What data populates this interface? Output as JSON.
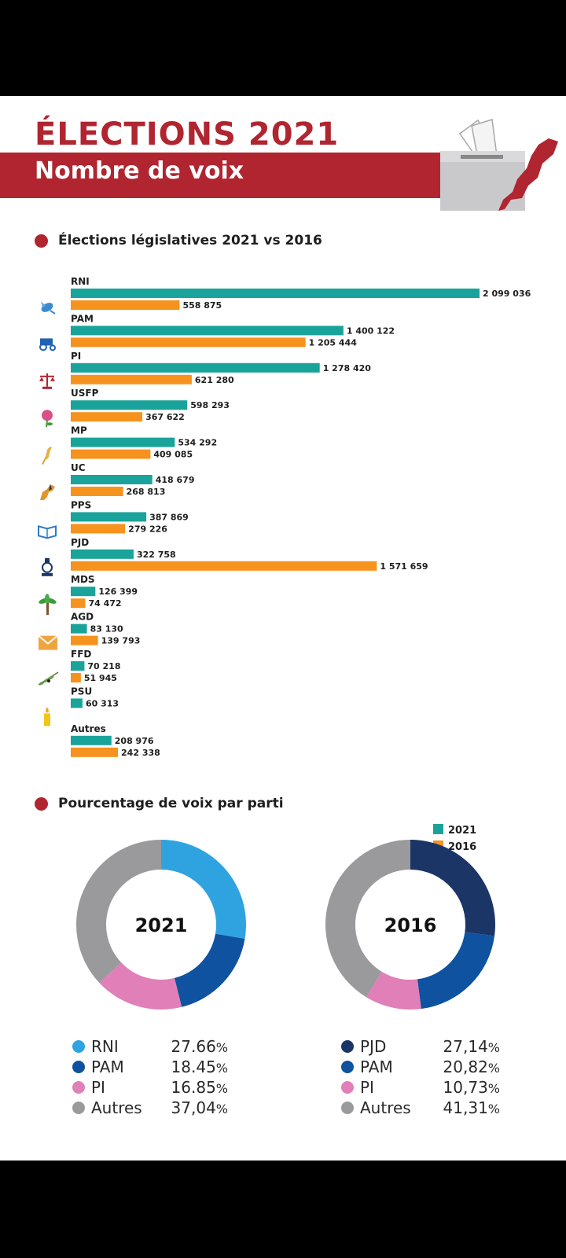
{
  "header": {
    "title": "ÉLECTIONS 2021",
    "subtitle": "Nombre de voix"
  },
  "colors": {
    "brand_red": "#b0252f",
    "bar_2021": "#1aa39a",
    "bar_2016": "#f6921e",
    "rni_blue": "#2fa3e0",
    "pam_blue": "#0f52a0",
    "pjd_navy": "#1b3566",
    "pi_pink": "#e07fb8",
    "autres_grey": "#9a9a9c"
  },
  "chart_data": [
    {
      "type": "bar",
      "title": "Élections législatives 2021 vs 2016",
      "orientation": "horizontal",
      "categories": [
        "RNI",
        "PAM",
        "PI",
        "USFP",
        "MP",
        "UC",
        "PPS",
        "PJD",
        "MDS",
        "AGD",
        "FFD",
        "PSU",
        "Autres"
      ],
      "category_icons": [
        "bird-icon",
        "tractor-icon",
        "scale-icon",
        "rose-icon",
        "wheat-icon",
        "horse-icon",
        "book-icon",
        "lamp-icon",
        "palm-tree-icon",
        "envelope-icon",
        "olive-branch-icon",
        "candle-icon",
        ""
      ],
      "series": [
        {
          "name": "2021",
          "values": [
            2099036,
            1400122,
            1278420,
            598293,
            534292,
            418679,
            387869,
            322758,
            126399,
            83130,
            70218,
            60313,
            208976
          ],
          "labels": [
            "2 099 036",
            "1 400 122",
            "1 278 420",
            "598 293",
            "534 292",
            "418 679",
            "387 869",
            "322 758",
            "126 399",
            "83 130",
            "70 218",
            "60 313",
            "208 976"
          ]
        },
        {
          "name": "2016",
          "values": [
            558875,
            1205444,
            621280,
            367622,
            409085,
            268813,
            279226,
            1571659,
            74472,
            139793,
            51945,
            null,
            242338
          ],
          "labels": [
            "558 875",
            "1 205 444",
            "621 280",
            "367 622",
            "409 085",
            "268 813",
            "279 226",
            "1 571 659",
            "74 472",
            "139 793",
            "51 945",
            "",
            "242 338"
          ]
        }
      ],
      "legend": [
        {
          "name": "2021"
        },
        {
          "name": "2016"
        }
      ]
    },
    {
      "type": "pie",
      "title": "Pourcentage de voix par parti",
      "center_label": "2021",
      "slices": [
        {
          "name": "RNI",
          "value": 27.66,
          "label": "27.66",
          "unit": "%"
        },
        {
          "name": "PAM",
          "value": 18.45,
          "label": "18.45",
          "unit": "%"
        },
        {
          "name": "PI",
          "value": 16.85,
          "label": "16.85",
          "unit": "%"
        },
        {
          "name": "Autres",
          "value": 37.04,
          "label": "37,04",
          "unit": "%"
        }
      ]
    },
    {
      "type": "pie",
      "title": "Pourcentage de voix par parti",
      "center_label": "2016",
      "slices": [
        {
          "name": "PJD",
          "value": 27.14,
          "label": "27,14",
          "unit": "%"
        },
        {
          "name": "PAM",
          "value": 20.82,
          "label": "20,82",
          "unit": "%"
        },
        {
          "name": "PI",
          "value": 10.73,
          "label": "10,73",
          "unit": "%"
        },
        {
          "name": "Autres",
          "value": 41.31,
          "label": "41,31",
          "unit": "%"
        }
      ]
    }
  ]
}
